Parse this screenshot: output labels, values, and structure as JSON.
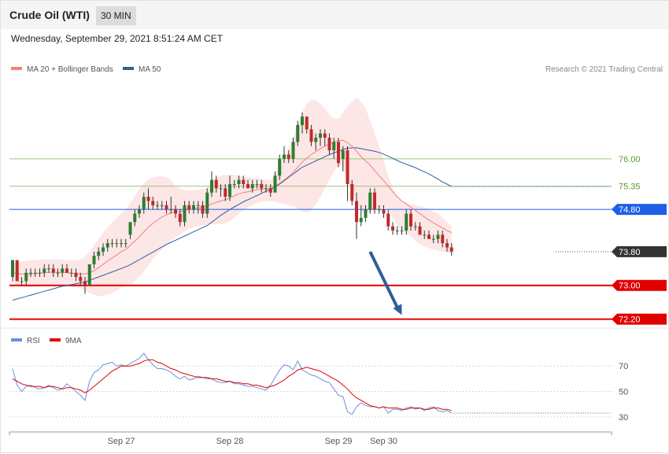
{
  "header": {
    "title": "Crude Oil (WTI)",
    "timeframe": "30 MIN"
  },
  "datetime": "Wednesday, September 29, 2021 8:51:24 AM CET",
  "legend": {
    "ma20": "MA 20 + Bollinger Bands",
    "ma50": "MA 50",
    "copyright": "Research © 2021 Trading Central",
    "rsi": "RSI",
    "ma9": "9MA"
  },
  "colors": {
    "ma20": "#f08080",
    "ma50": "#2f5f9a",
    "band": "#fde3e3",
    "up": "#2e7d32",
    "down": "#c62828",
    "grid_green": "#9bc97a",
    "level_blue": "#1e5fe6",
    "level_red": "#e00000",
    "current": "#333333",
    "arrow": "#2f5f9a",
    "rsi": "#6a8fe0",
    "ma9": "#e00000"
  },
  "chart_data": [
    {
      "type": "candlestick",
      "title": "Crude Oil (WTI)",
      "timeframe": "30 MIN",
      "x_ticks": [
        "Sep 27",
        "Sep 28",
        "Sep 29",
        "Sep 30"
      ],
      "x_tick_positions": [
        24,
        48,
        72,
        82
      ],
      "ylim": [
        72.1,
        77.6
      ],
      "levels": [
        {
          "value": 76.0,
          "label": "76.00",
          "kind": "resistance"
        },
        {
          "value": 75.35,
          "label": "75.35",
          "kind": "resistance"
        },
        {
          "value": 74.8,
          "label": "74.80",
          "kind": "pivot"
        },
        {
          "value": 73.8,
          "label": "73.80",
          "kind": "current"
        },
        {
          "value": 73.0,
          "label": "73.00",
          "kind": "support"
        },
        {
          "value": 72.2,
          "label": "72.20",
          "kind": "support"
        }
      ],
      "projection": {
        "from": {
          "x": 79,
          "y": 73.8
        },
        "to": {
          "x": 86,
          "y": 72.3
        }
      },
      "candles": [
        [
          73.2,
          73.6,
          73.1,
          73.6
        ],
        [
          73.6,
          73.6,
          73.1,
          73.1
        ],
        [
          73.1,
          73.2,
          73.0,
          73.1
        ],
        [
          73.1,
          73.4,
          73.0,
          73.3
        ],
        [
          73.3,
          73.4,
          73.2,
          73.3
        ],
        [
          73.3,
          73.4,
          73.2,
          73.3
        ],
        [
          73.3,
          73.4,
          73.2,
          73.3
        ],
        [
          73.3,
          73.5,
          73.2,
          73.4
        ],
        [
          73.4,
          73.5,
          73.3,
          73.4
        ],
        [
          73.4,
          73.5,
          73.2,
          73.3
        ],
        [
          73.3,
          73.4,
          73.2,
          73.3
        ],
        [
          73.3,
          73.5,
          73.2,
          73.4
        ],
        [
          73.4,
          73.5,
          73.3,
          73.3
        ],
        [
          73.3,
          73.4,
          73.2,
          73.3
        ],
        [
          73.3,
          73.4,
          73.1,
          73.2
        ],
        [
          73.2,
          73.3,
          73.0,
          73.1
        ],
        [
          73.1,
          73.2,
          72.8,
          73.0
        ],
        [
          73.0,
          73.5,
          73.0,
          73.5
        ],
        [
          73.5,
          73.8,
          73.4,
          73.7
        ],
        [
          73.7,
          73.9,
          73.6,
          73.8
        ],
        [
          73.8,
          74.0,
          73.7,
          73.9
        ],
        [
          73.9,
          74.1,
          73.8,
          74.0
        ],
        [
          74.0,
          74.1,
          73.9,
          74.0
        ],
        [
          74.0,
          74.1,
          73.9,
          74.0
        ],
        [
          74.0,
          74.1,
          73.9,
          74.0
        ],
        [
          74.0,
          74.1,
          73.9,
          74.0
        ],
        [
          74.2,
          74.5,
          74.1,
          74.5
        ],
        [
          74.5,
          74.8,
          74.4,
          74.7
        ],
        [
          74.7,
          74.9,
          74.6,
          74.8
        ],
        [
          74.8,
          75.2,
          74.7,
          75.1
        ],
        [
          75.1,
          75.3,
          74.8,
          75.0
        ],
        [
          75.0,
          75.1,
          74.8,
          74.9
        ],
        [
          74.9,
          75.0,
          74.8,
          74.9
        ],
        [
          74.9,
          75.0,
          74.8,
          74.9
        ],
        [
          74.9,
          75.0,
          74.7,
          74.8
        ],
        [
          74.8,
          75.1,
          74.7,
          74.8
        ],
        [
          74.8,
          74.9,
          74.6,
          74.7
        ],
        [
          74.7,
          74.8,
          74.4,
          74.5
        ],
        [
          74.5,
          75.0,
          74.4,
          74.9
        ],
        [
          74.9,
          75.0,
          74.7,
          74.8
        ],
        [
          74.8,
          75.0,
          74.7,
          74.9
        ],
        [
          74.9,
          75.0,
          74.7,
          74.9
        ],
        [
          74.9,
          75.0,
          74.6,
          74.7
        ],
        [
          74.7,
          75.3,
          74.6,
          75.2
        ],
        [
          75.2,
          75.7,
          75.1,
          75.5
        ],
        [
          75.5,
          75.6,
          75.2,
          75.3
        ],
        [
          75.3,
          75.4,
          75.1,
          75.3
        ],
        [
          75.3,
          75.4,
          75.0,
          75.1
        ],
        [
          75.1,
          75.6,
          75.0,
          75.4
        ],
        [
          75.4,
          75.5,
          75.3,
          75.4
        ],
        [
          75.4,
          75.6,
          75.3,
          75.5
        ],
        [
          75.5,
          75.6,
          75.3,
          75.4
        ],
        [
          75.4,
          75.5,
          75.3,
          75.3
        ],
        [
          75.3,
          75.5,
          75.2,
          75.4
        ],
        [
          75.4,
          75.5,
          75.3,
          75.4
        ],
        [
          75.4,
          75.5,
          75.2,
          75.3
        ],
        [
          75.3,
          75.4,
          75.2,
          75.3
        ],
        [
          75.3,
          75.4,
          75.1,
          75.2
        ],
        [
          75.2,
          75.7,
          75.2,
          75.6
        ],
        [
          75.6,
          76.1,
          75.5,
          76.0
        ],
        [
          76.0,
          76.3,
          75.9,
          76.1
        ],
        [
          76.1,
          76.2,
          75.9,
          76.0
        ],
        [
          76.0,
          76.5,
          75.9,
          76.4
        ],
        [
          76.4,
          76.9,
          76.3,
          76.8
        ],
        [
          76.8,
          77.1,
          76.6,
          77.0
        ],
        [
          77.0,
          77.0,
          76.6,
          76.7
        ],
        [
          76.7,
          76.8,
          76.3,
          76.4
        ],
        [
          76.4,
          76.6,
          76.2,
          76.5
        ],
        [
          76.5,
          76.7,
          76.3,
          76.6
        ],
        [
          76.6,
          76.7,
          76.3,
          76.5
        ],
        [
          76.5,
          76.6,
          76.1,
          76.2
        ],
        [
          76.2,
          76.5,
          76.0,
          76.4
        ],
        [
          76.4,
          76.5,
          75.8,
          75.9
        ],
        [
          76.0,
          76.3,
          75.7,
          76.2
        ],
        [
          76.2,
          76.3,
          75.0,
          75.4
        ],
        [
          75.4,
          75.5,
          74.9,
          75.0
        ],
        [
          75.0,
          75.2,
          74.1,
          74.5
        ],
        [
          74.5,
          74.9,
          74.4,
          74.6
        ],
        [
          74.6,
          74.9,
          74.5,
          74.8
        ],
        [
          74.8,
          75.3,
          74.7,
          75.2
        ],
        [
          75.2,
          75.3,
          74.7,
          74.8
        ],
        [
          74.8,
          74.9,
          74.7,
          74.8
        ],
        [
          74.8,
          74.9,
          74.6,
          74.7
        ],
        [
          74.7,
          74.8,
          74.3,
          74.4
        ],
        [
          74.4,
          74.5,
          74.2,
          74.3
        ],
        [
          74.3,
          74.4,
          74.2,
          74.3
        ],
        [
          74.3,
          74.4,
          74.2,
          74.3
        ],
        [
          74.3,
          74.8,
          74.2,
          74.7
        ],
        [
          74.7,
          74.8,
          74.3,
          74.4
        ],
        [
          74.4,
          74.5,
          74.3,
          74.4
        ],
        [
          74.4,
          74.5,
          74.2,
          74.2
        ],
        [
          74.2,
          74.3,
          74.1,
          74.2
        ],
        [
          74.2,
          74.3,
          74.1,
          74.1
        ],
        [
          74.1,
          74.2,
          74.0,
          74.1
        ],
        [
          74.1,
          74.3,
          74.0,
          74.2
        ],
        [
          74.2,
          74.3,
          73.9,
          74.0
        ],
        [
          74.0,
          74.1,
          73.8,
          73.9
        ],
        [
          73.9,
          74.0,
          73.7,
          73.8
        ]
      ],
      "ma20": [
        73.3,
        73.28,
        73.27,
        73.27,
        73.27,
        73.28,
        73.29,
        73.3,
        73.31,
        73.31,
        73.31,
        73.31,
        73.3,
        73.29,
        73.28,
        73.27,
        73.27,
        73.3,
        73.35,
        73.42,
        73.5,
        73.58,
        73.65,
        73.72,
        73.8,
        73.85,
        73.95,
        74.05,
        74.15,
        74.27,
        74.38,
        74.47,
        74.55,
        74.62,
        74.67,
        74.72,
        74.74,
        74.75,
        74.78,
        74.8,
        74.82,
        74.84,
        74.85,
        74.88,
        74.93,
        74.97,
        75.0,
        75.03,
        75.07,
        75.12,
        75.17,
        75.2,
        75.22,
        75.25,
        75.27,
        75.28,
        75.29,
        75.3,
        75.35,
        75.42,
        75.5,
        75.58,
        75.68,
        75.8,
        75.92,
        76.02,
        76.1,
        76.17,
        76.24,
        76.3,
        76.35,
        76.4,
        76.43,
        76.44,
        76.38,
        76.3,
        76.18,
        76.05,
        75.95,
        75.85,
        75.72,
        75.6,
        75.48,
        75.35,
        75.22,
        75.1,
        75.0,
        74.93,
        74.85,
        74.78,
        74.7,
        74.62,
        74.55,
        74.48,
        74.42,
        74.36,
        74.3,
        74.25
      ],
      "ma20_upper": [
        73.5,
        73.55,
        73.57,
        73.58,
        73.6,
        73.6,
        73.6,
        73.62,
        73.62,
        73.62,
        73.62,
        73.62,
        73.6,
        73.6,
        73.6,
        73.62,
        73.68,
        73.8,
        73.95,
        74.1,
        74.25,
        74.38,
        74.5,
        74.6,
        74.7,
        74.8,
        74.95,
        75.12,
        75.28,
        75.42,
        75.52,
        75.56,
        75.58,
        75.58,
        75.56,
        75.5,
        75.35,
        75.3,
        75.25,
        75.25,
        75.25,
        75.27,
        75.28,
        75.32,
        75.45,
        75.55,
        75.6,
        75.62,
        75.62,
        75.62,
        75.6,
        75.58,
        75.56,
        75.55,
        75.54,
        75.52,
        75.5,
        75.5,
        75.62,
        75.85,
        76.05,
        76.25,
        76.5,
        76.8,
        77.1,
        77.3,
        77.4,
        77.38,
        77.3,
        77.2,
        77.05,
        76.95,
        76.95,
        77.1,
        77.25,
        77.35,
        77.45,
        77.35,
        77.2,
        76.9,
        76.6,
        76.3,
        75.95,
        75.6,
        75.3,
        75.1,
        75.0,
        74.95,
        74.92,
        74.9,
        74.88,
        74.85,
        74.8,
        74.75,
        74.7,
        74.6,
        74.5,
        74.4
      ],
      "ma20_lower": [
        73.1,
        73.0,
        72.98,
        72.96,
        72.95,
        72.96,
        72.98,
        72.99,
        73.0,
        73.0,
        73.0,
        73.0,
        73.0,
        72.98,
        72.96,
        72.93,
        72.88,
        72.82,
        72.78,
        72.75,
        72.75,
        72.78,
        72.82,
        72.88,
        72.95,
        72.98,
        73.02,
        73.1,
        73.2,
        73.32,
        73.48,
        73.62,
        73.75,
        73.85,
        73.95,
        74.05,
        74.15,
        74.2,
        74.28,
        74.35,
        74.38,
        74.4,
        74.42,
        74.45,
        74.45,
        74.45,
        74.45,
        74.47,
        74.52,
        74.6,
        74.7,
        74.78,
        74.85,
        74.9,
        74.95,
        74.98,
        75.0,
        75.0,
        74.98,
        74.95,
        74.92,
        74.9,
        74.88,
        74.82,
        74.75,
        74.72,
        74.78,
        74.92,
        75.1,
        75.3,
        75.5,
        75.7,
        75.85,
        75.8,
        75.5,
        75.25,
        74.95,
        74.75,
        74.7,
        74.75,
        74.8,
        74.82,
        74.85,
        74.82,
        74.6,
        74.42,
        74.3,
        74.25,
        74.15,
        74.05,
        73.98,
        73.92,
        73.88,
        73.85,
        73.82,
        73.8,
        73.78,
        73.75
      ],
      "ma50": [
        72.65,
        72.68,
        72.71,
        72.74,
        72.77,
        72.8,
        72.83,
        72.86,
        72.89,
        72.92,
        72.95,
        72.98,
        73.0,
        73.02,
        73.04,
        73.06,
        73.08,
        73.12,
        73.16,
        73.2,
        73.24,
        73.28,
        73.32,
        73.36,
        73.4,
        73.44,
        73.49,
        73.55,
        73.61,
        73.67,
        73.73,
        73.79,
        73.85,
        73.91,
        73.97,
        74.02,
        74.07,
        74.12,
        74.17,
        74.22,
        74.27,
        74.32,
        74.37,
        74.42,
        74.5,
        74.58,
        74.66,
        74.73,
        74.8,
        74.86,
        74.92,
        74.98,
        75.03,
        75.08,
        75.13,
        75.18,
        75.23,
        75.28,
        75.33,
        75.4,
        75.48,
        75.56,
        75.64,
        75.72,
        75.8,
        75.85,
        75.9,
        75.95,
        76.0,
        76.05,
        76.1,
        76.14,
        76.18,
        76.22,
        76.25,
        76.26,
        76.26,
        76.24,
        76.22,
        76.2,
        76.18,
        76.15,
        76.11,
        76.06,
        76.01,
        75.96,
        75.91,
        75.87,
        75.83,
        75.79,
        75.74,
        75.69,
        75.64,
        75.58,
        75.52,
        75.45,
        75.4,
        75.34
      ]
    },
    {
      "type": "line",
      "title": "RSI",
      "ylim": [
        20,
        85
      ],
      "y_ticks": [
        70,
        50,
        30
      ],
      "series": [
        {
          "name": "RSI",
          "values": [
            68,
            55,
            50,
            54,
            55,
            53,
            52,
            53,
            55,
            53,
            51,
            52,
            56,
            53,
            50,
            47,
            43,
            58,
            65,
            67,
            71,
            72,
            73,
            70,
            71,
            70,
            72,
            74,
            76,
            80,
            75,
            71,
            68,
            68,
            67,
            65,
            62,
            60,
            62,
            59,
            60,
            62,
            61,
            60,
            60,
            58,
            57,
            57,
            58,
            56,
            56,
            55,
            54,
            54,
            53,
            52,
            51,
            55,
            61,
            67,
            71,
            70,
            67,
            74,
            67,
            65,
            63,
            62,
            60,
            58,
            57,
            52,
            47,
            46,
            34,
            32,
            38,
            41,
            39,
            38,
            38,
            37,
            38,
            33,
            36,
            36,
            35,
            37,
            38,
            36,
            37,
            35,
            37,
            38,
            35,
            34,
            35,
            33
          ]
        },
        {
          "name": "9MA",
          "values": [
            60,
            58,
            56,
            55,
            54,
            54,
            54,
            53,
            54,
            54,
            53,
            52,
            53,
            53,
            52,
            51,
            49,
            51,
            54,
            57,
            60,
            63,
            66,
            68,
            70,
            70,
            70,
            71,
            72,
            74,
            75,
            75,
            73,
            72,
            70,
            68,
            67,
            65,
            64,
            63,
            62,
            61,
            61,
            61,
            60,
            60,
            59,
            58,
            58,
            57,
            57,
            56,
            56,
            55,
            55,
            54,
            53,
            54,
            55,
            57,
            59,
            62,
            64,
            67,
            68,
            69,
            68,
            67,
            66,
            64,
            62,
            60,
            58,
            55,
            52,
            48,
            45,
            43,
            41,
            39,
            38,
            37,
            38,
            37,
            37,
            37,
            36,
            36,
            37,
            37,
            37,
            36,
            36,
            37,
            37,
            36,
            36,
            35
          ]
        }
      ]
    }
  ]
}
